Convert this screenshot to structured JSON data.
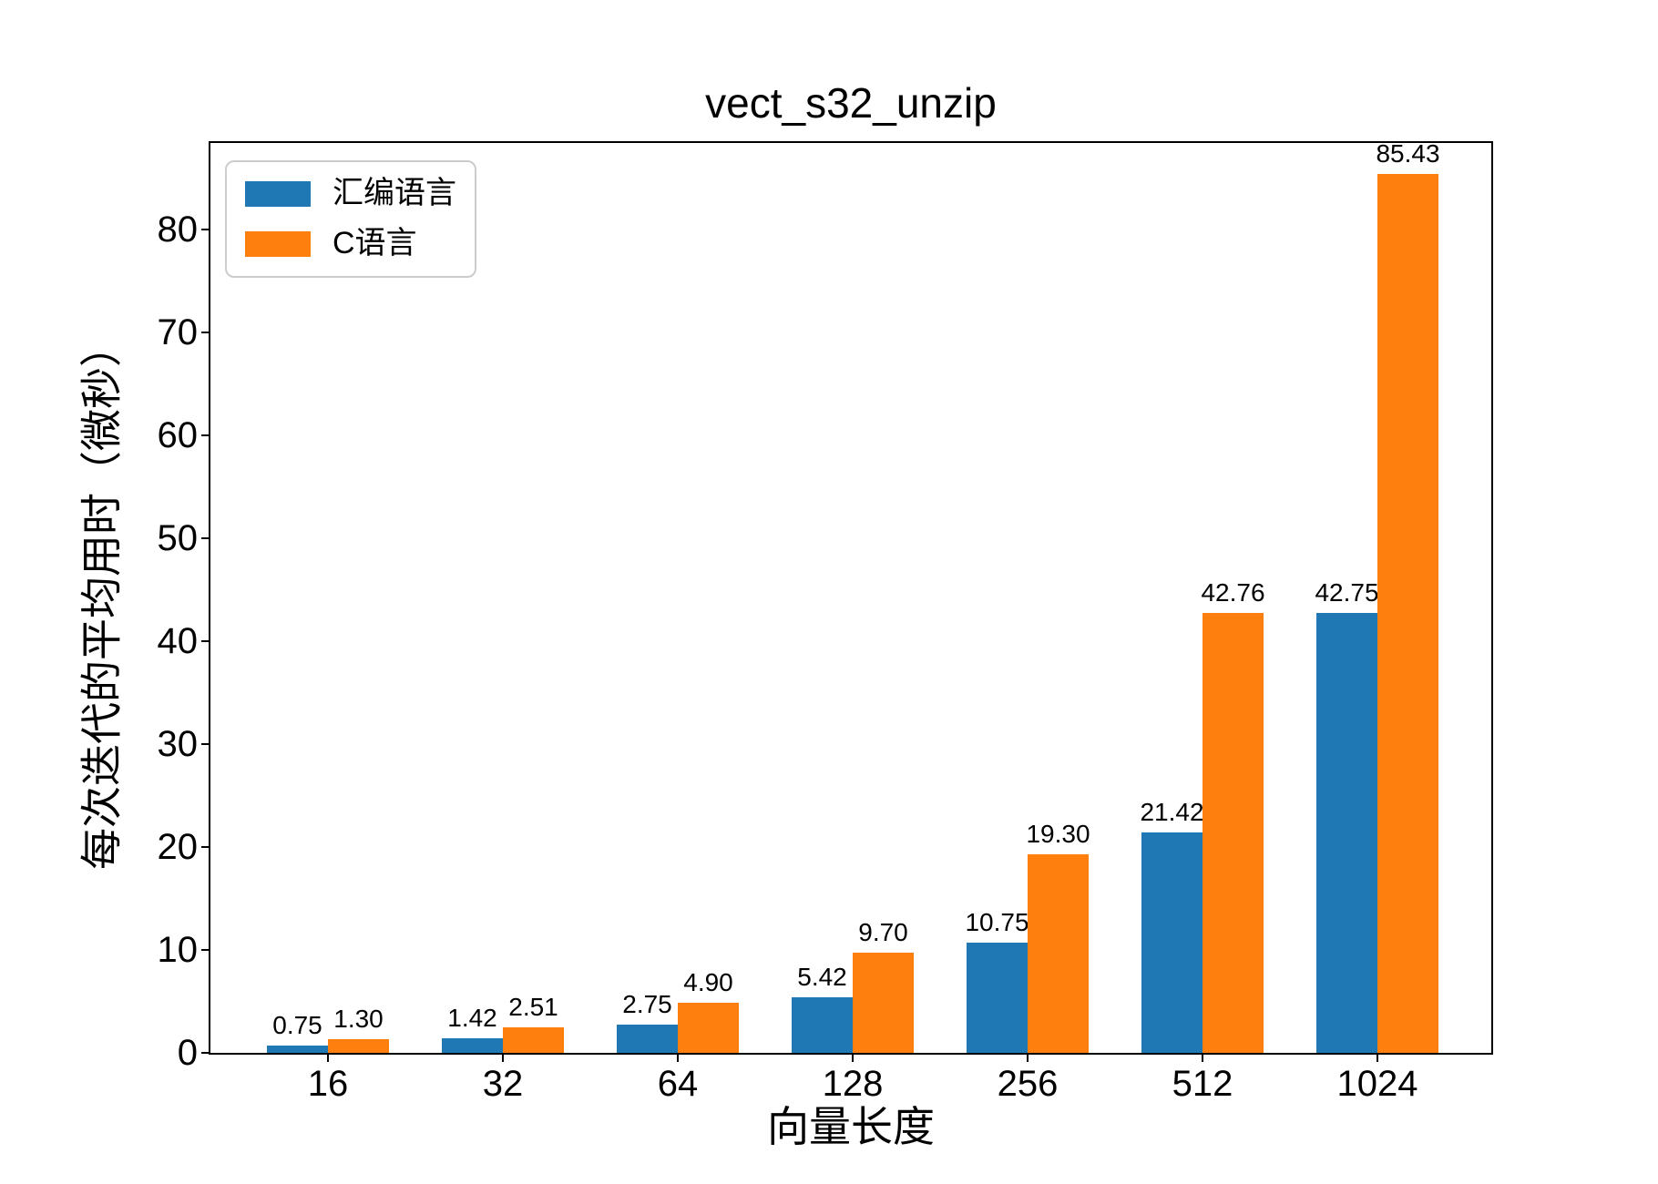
{
  "chart_data": {
    "type": "bar",
    "title": "vect_s32_unzip",
    "xlabel": "向量长度",
    "ylabel": "每次迭代的平均用时（微秒）",
    "categories": [
      "16",
      "32",
      "64",
      "128",
      "256",
      "512",
      "1024"
    ],
    "series": [
      {
        "name": "汇编语言",
        "color": "#1f77b4",
        "values": [
          0.75,
          1.42,
          2.75,
          5.42,
          10.75,
          21.42,
          42.75
        ]
      },
      {
        "name": "C语言",
        "color": "#ff7f0e",
        "values": [
          1.3,
          2.51,
          4.9,
          9.7,
          19.3,
          42.76,
          85.43
        ]
      }
    ],
    "yticks": [
      0,
      10,
      20,
      30,
      40,
      50,
      60,
      70,
      80
    ],
    "ylim": [
      0,
      88.8
    ],
    "grid": false,
    "legend_position": "upper left",
    "bar_labels": true,
    "bar_label_format": "2-decimals",
    "colors": {
      "assembly": "#1f77b4",
      "c": "#ff7f0e",
      "spine": "#000000",
      "legend_border": "#cccccc"
    }
  }
}
